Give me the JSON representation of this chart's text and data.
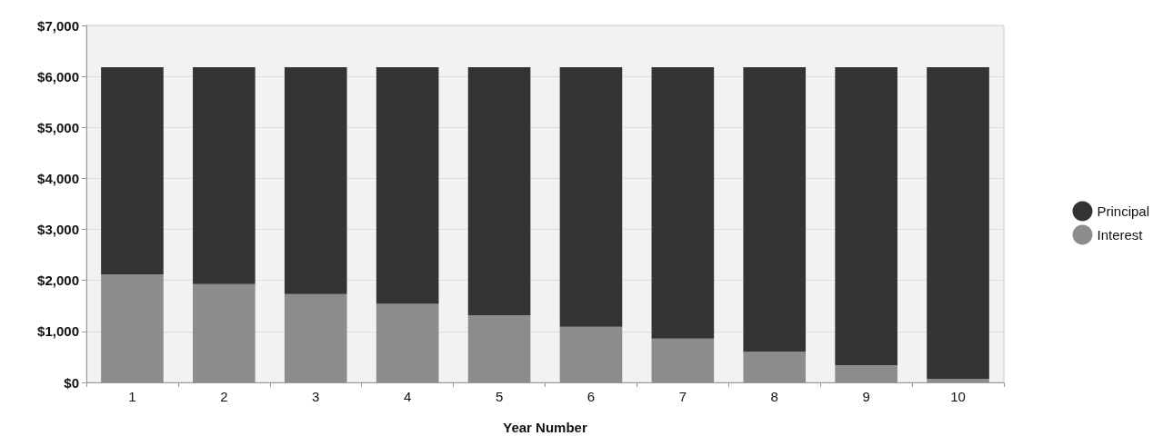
{
  "chart_data": {
    "type": "bar",
    "stacked": true,
    "xlabel": "Year Number",
    "categories": [
      "1",
      "2",
      "3",
      "4",
      "5",
      "6",
      "7",
      "8",
      "9",
      "10"
    ],
    "series": [
      {
        "name": "Interest",
        "color": "#8c8c8c",
        "values": [
          2120,
          1930,
          1730,
          1540,
          1320,
          1090,
          860,
          600,
          340,
          70
        ]
      },
      {
        "name": "Principal",
        "color": "#333333",
        "values": [
          4060,
          4250,
          4450,
          4640,
          4860,
          5090,
          5320,
          5580,
          5840,
          6110
        ]
      }
    ],
    "ylim": [
      0,
      7000
    ],
    "yticks": [
      {
        "value": 0,
        "label": "$0"
      },
      {
        "value": 1000,
        "label": "$1,000"
      },
      {
        "value": 2000,
        "label": "$2,000"
      },
      {
        "value": 3000,
        "label": "$3,000"
      },
      {
        "value": 4000,
        "label": "$4,000"
      },
      {
        "value": 5000,
        "label": "$5,000"
      },
      {
        "value": 6000,
        "label": "$6,000"
      },
      {
        "value": 7000,
        "label": "$7,000"
      }
    ],
    "grid": "y",
    "legend": "right"
  }
}
